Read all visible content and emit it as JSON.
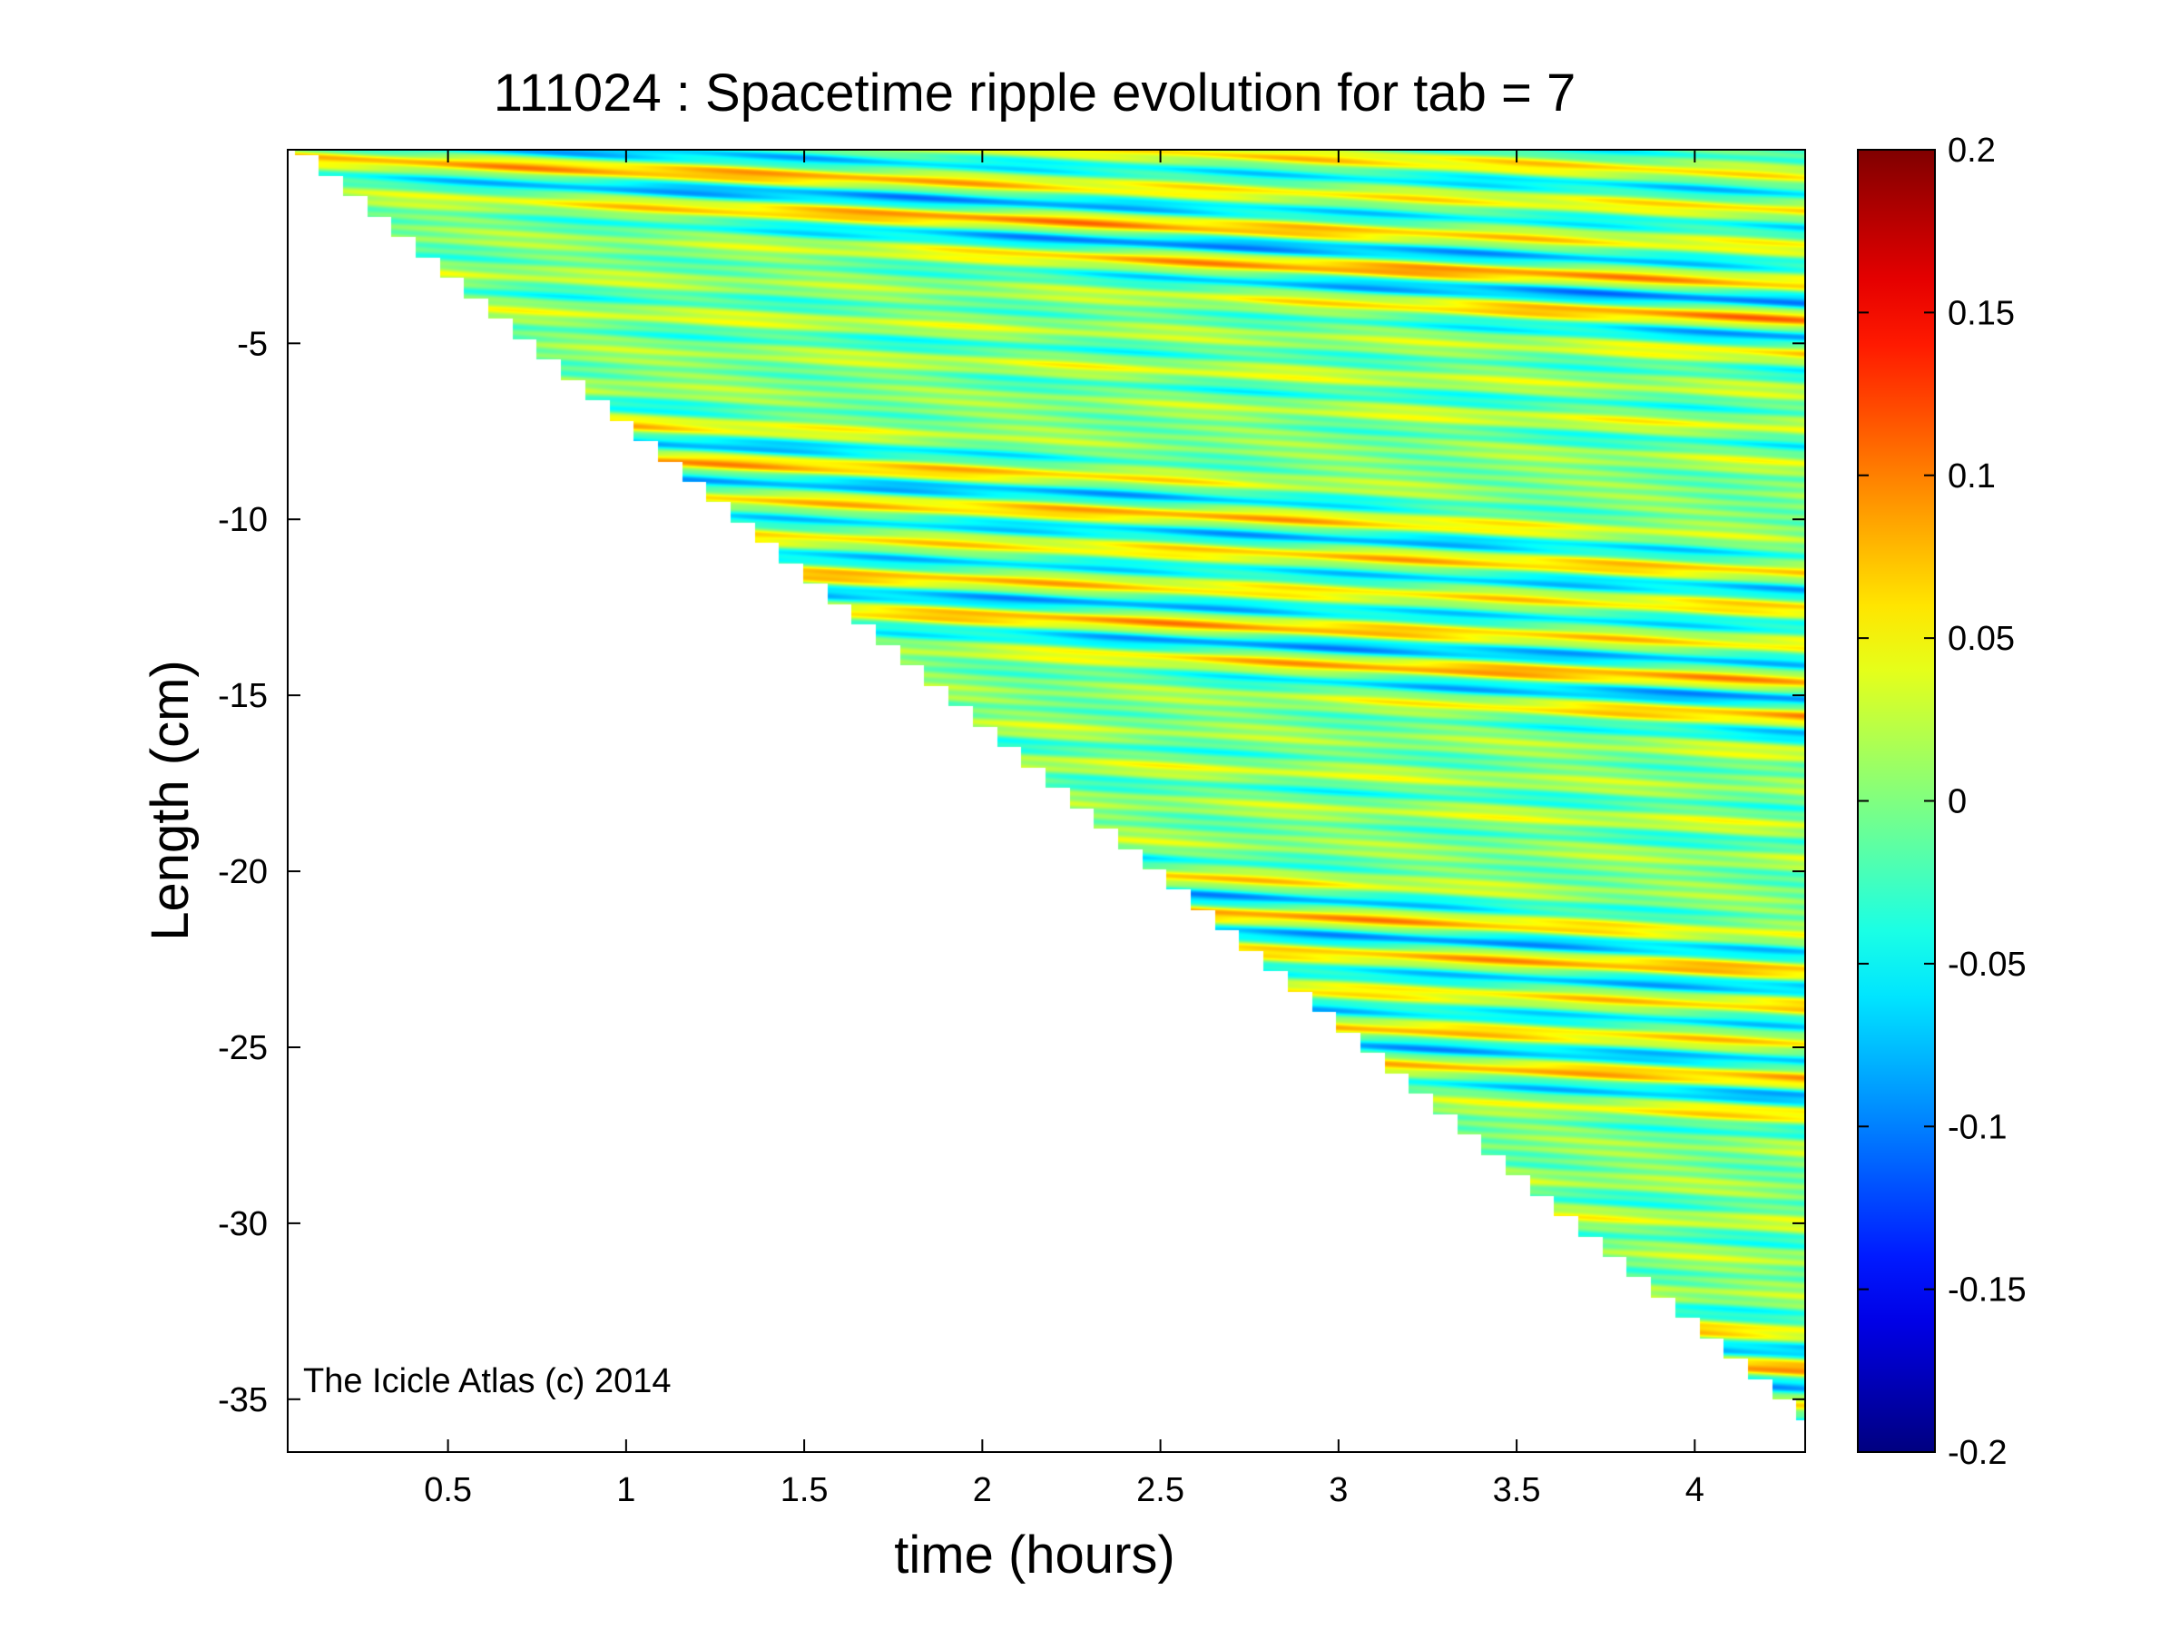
{
  "chart_data": {
    "type": "heatmap",
    "title": "111024 : Spacetime ripple evolution for tab = 7",
    "xlabel": "time (hours)",
    "ylabel": "Length (cm)",
    "xlim": [
      0.05,
      4.31
    ],
    "ylim": [
      -36.5,
      0.5
    ],
    "x_ticks": [
      0.5,
      1,
      1.5,
      2,
      2.5,
      3,
      3.5,
      4
    ],
    "x_tick_labels": [
      "0.5",
      "1",
      "1.5",
      "2",
      "2.5",
      "3",
      "3.5",
      "4"
    ],
    "y_ticks": [
      -5,
      -10,
      -15,
      -20,
      -25,
      -30,
      -35
    ],
    "y_tick_labels": [
      "-5",
      "-10",
      "-15",
      "-20",
      "-25",
      "-30",
      "-35"
    ],
    "colorbar": {
      "colormap": "jet",
      "clim": [
        -0.2,
        0.2
      ],
      "ticks": [
        0.2,
        0.15,
        0.1,
        0.05,
        0,
        -0.05,
        -0.1,
        -0.15,
        -0.2
      ],
      "tick_labels": [
        "0.2",
        "0.15",
        "0.1",
        "0.05",
        "0",
        "-0.05",
        "-0.1",
        "-0.15",
        "-0.2"
      ]
    },
    "data_region": {
      "description_free_boundary": true,
      "boundary_top_left": [
        0.05,
        0.5
      ],
      "boundary_bottom_right": [
        4.31,
        -35.8
      ],
      "ripple_count": 36
    },
    "annotation": "The Icicle Atlas (c) 2014",
    "grid": false
  }
}
